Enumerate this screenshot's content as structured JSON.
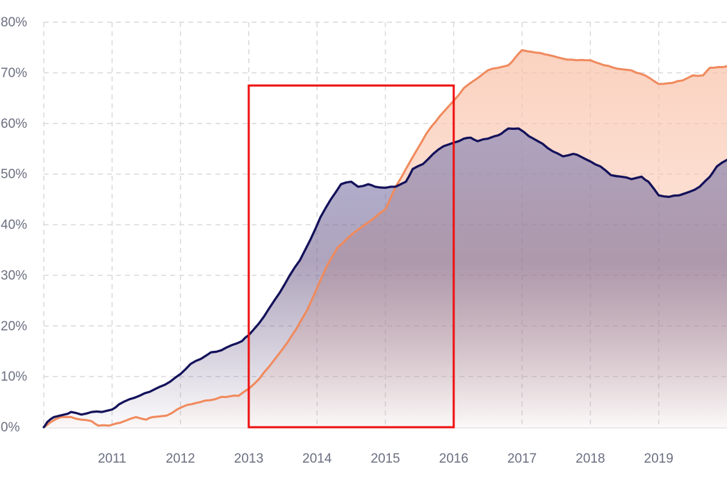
{
  "chart_data": {
    "type": "area",
    "title": "",
    "xlabel": "",
    "ylabel": "",
    "x_tick_labels": [
      "2011",
      "2012",
      "2013",
      "2014",
      "2015",
      "2016",
      "2017",
      "2018",
      "2019"
    ],
    "y_tick_labels": [
      "0%",
      "10%",
      "20%",
      "30%",
      "40%",
      "50%",
      "60%",
      "70%",
      "80%"
    ],
    "xlim": [
      2010.0,
      2020.0
    ],
    "ylim": [
      0,
      80
    ],
    "grid": true,
    "series": [
      {
        "color": "#f08a5d",
        "fill_color": "#f9c3ab",
        "points": [
          [
            2010.0,
            0.0
          ],
          [
            2010.1,
            1.0
          ],
          [
            2010.25,
            2.0
          ],
          [
            2010.4,
            2.0
          ],
          [
            2010.55,
            1.5
          ],
          [
            2010.7,
            1.2
          ],
          [
            2010.8,
            0.3
          ],
          [
            2010.95,
            0.3
          ],
          [
            2011.05,
            0.7
          ],
          [
            2011.2,
            1.3
          ],
          [
            2011.35,
            2.0
          ],
          [
            2011.5,
            1.5
          ],
          [
            2011.6,
            2.0
          ],
          [
            2011.8,
            2.3
          ],
          [
            2011.95,
            3.5
          ],
          [
            2012.1,
            4.4
          ],
          [
            2012.3,
            5.0
          ],
          [
            2012.5,
            5.5
          ],
          [
            2012.6,
            6.0
          ],
          [
            2012.85,
            6.2
          ],
          [
            2013.0,
            7.6
          ],
          [
            2013.15,
            9.5
          ],
          [
            2013.3,
            12.0
          ],
          [
            2013.5,
            15.5
          ],
          [
            2013.7,
            19.5
          ],
          [
            2013.85,
            23.0
          ],
          [
            2014.0,
            27.5
          ],
          [
            2014.15,
            32.0
          ],
          [
            2014.3,
            35.5
          ],
          [
            2014.5,
            38.0
          ],
          [
            2014.7,
            40.0
          ],
          [
            2014.85,
            41.5
          ],
          [
            2015.0,
            43.0
          ],
          [
            2015.15,
            47.5
          ],
          [
            2015.3,
            51.0
          ],
          [
            2015.45,
            54.5
          ],
          [
            2015.6,
            58.0
          ],
          [
            2015.8,
            61.5
          ],
          [
            2016.0,
            64.5
          ],
          [
            2016.15,
            67.0
          ],
          [
            2016.3,
            68.5
          ],
          [
            2016.5,
            70.5
          ],
          [
            2016.65,
            71.0
          ],
          [
            2016.8,
            71.5
          ],
          [
            2016.9,
            73.0
          ],
          [
            2017.0,
            74.5
          ],
          [
            2017.2,
            74.0
          ],
          [
            2017.4,
            73.5
          ],
          [
            2017.6,
            72.8
          ],
          [
            2017.8,
            72.5
          ],
          [
            2018.0,
            72.5
          ],
          [
            2018.2,
            71.5
          ],
          [
            2018.4,
            70.8
          ],
          [
            2018.6,
            70.5
          ],
          [
            2018.8,
            69.5
          ],
          [
            2019.0,
            67.8
          ],
          [
            2019.2,
            68.0
          ],
          [
            2019.35,
            68.5
          ],
          [
            2019.5,
            69.5
          ],
          [
            2019.65,
            69.5
          ],
          [
            2019.75,
            71.0
          ],
          [
            2020.0,
            71.3
          ]
        ]
      },
      {
        "color": "#13115a",
        "fill_color": "#7b7fb8",
        "points": [
          [
            2010.0,
            0.0
          ],
          [
            2010.05,
            1.0
          ],
          [
            2010.15,
            2.0
          ],
          [
            2010.3,
            2.5
          ],
          [
            2010.4,
            3.0
          ],
          [
            2010.55,
            2.5
          ],
          [
            2010.7,
            3.0
          ],
          [
            2010.85,
            3.0
          ],
          [
            2011.0,
            3.5
          ],
          [
            2011.1,
            4.5
          ],
          [
            2011.25,
            5.5
          ],
          [
            2011.4,
            6.2
          ],
          [
            2011.55,
            7.0
          ],
          [
            2011.7,
            8.0
          ],
          [
            2011.85,
            9.0
          ],
          [
            2012.0,
            10.5
          ],
          [
            2012.15,
            12.5
          ],
          [
            2012.3,
            13.5
          ],
          [
            2012.45,
            14.8
          ],
          [
            2012.6,
            15.2
          ],
          [
            2012.75,
            16.2
          ],
          [
            2012.9,
            17.0
          ],
          [
            2013.0,
            18.2
          ],
          [
            2013.15,
            20.5
          ],
          [
            2013.3,
            23.5
          ],
          [
            2013.45,
            26.5
          ],
          [
            2013.6,
            30.0
          ],
          [
            2013.75,
            33.0
          ],
          [
            2013.9,
            37.0
          ],
          [
            2014.05,
            41.5
          ],
          [
            2014.2,
            45.0
          ],
          [
            2014.35,
            48.0
          ],
          [
            2014.5,
            48.5
          ],
          [
            2014.6,
            47.5
          ],
          [
            2014.75,
            48.0
          ],
          [
            2014.85,
            47.5
          ],
          [
            2015.0,
            47.3
          ],
          [
            2015.15,
            47.5
          ],
          [
            2015.3,
            48.5
          ],
          [
            2015.4,
            51.0
          ],
          [
            2015.55,
            52.0
          ],
          [
            2015.7,
            54.0
          ],
          [
            2015.85,
            55.5
          ],
          [
            2016.0,
            56.2
          ],
          [
            2016.15,
            57.0
          ],
          [
            2016.25,
            57.2
          ],
          [
            2016.35,
            56.5
          ],
          [
            2016.5,
            57.0
          ],
          [
            2016.6,
            57.5
          ],
          [
            2016.7,
            58.0
          ],
          [
            2016.8,
            59.0
          ],
          [
            2016.95,
            59.0
          ],
          [
            2017.1,
            57.5
          ],
          [
            2017.3,
            56.0
          ],
          [
            2017.45,
            54.5
          ],
          [
            2017.6,
            53.5
          ],
          [
            2017.75,
            54.0
          ],
          [
            2017.85,
            53.5
          ],
          [
            2018.0,
            52.5
          ],
          [
            2018.15,
            51.5
          ],
          [
            2018.3,
            49.8
          ],
          [
            2018.45,
            49.5
          ],
          [
            2018.6,
            49.0
          ],
          [
            2018.75,
            49.5
          ],
          [
            2018.85,
            48.5
          ],
          [
            2019.0,
            45.8
          ],
          [
            2019.15,
            45.5
          ],
          [
            2019.3,
            45.8
          ],
          [
            2019.45,
            46.5
          ],
          [
            2019.6,
            47.5
          ],
          [
            2019.75,
            49.5
          ],
          [
            2019.85,
            51.5
          ],
          [
            2020.0,
            52.8
          ]
        ]
      }
    ],
    "annotations": [
      {
        "type": "rectangle",
        "color": "#ee1111",
        "x_range": [
          2013.0,
          2016.0
        ],
        "y_range": [
          0,
          67.5
        ]
      }
    ]
  }
}
